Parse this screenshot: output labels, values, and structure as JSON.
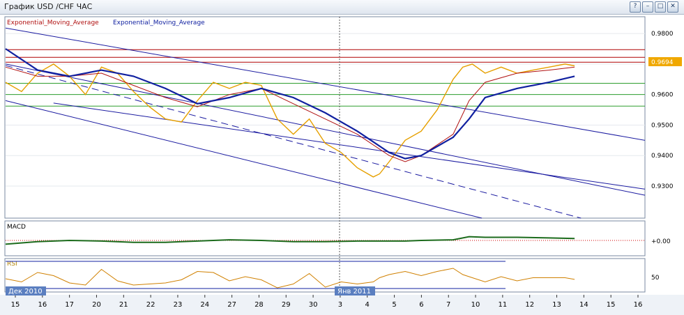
{
  "window": {
    "title": "График USD /CHF  ЧАС",
    "buttons": [
      "?",
      "–",
      "□",
      "✕"
    ]
  },
  "legend": [
    "Exponential_Moving_Average",
    "Exponential_Moving_Average"
  ],
  "colors": {
    "price": "#e6a000",
    "ema_fast": "#b01010",
    "ema_slow": "#1020a0",
    "trend_line": "#1a1aa0",
    "red_level": "#b00000",
    "green_level": "#2e9e2e",
    "macd_line": "#1c6b1c",
    "macd_hist": "#d00000",
    "rsi_line": "#d08000",
    "last_price_bg": "#f0a800"
  },
  "panels": {
    "macd_label": "MACD",
    "macd_tick": "+0.00",
    "rsi_label": "RSI",
    "rsi_tick": "50",
    "date_label_left": "Дек 2010",
    "date_label_mid": "Янв 2011"
  },
  "chart_data": {
    "type": "line",
    "title": "График USD /CHF  ЧАС",
    "y_ticks": [
      "0.9800",
      "0.9700",
      "0.9600",
      "0.9500",
      "0.9400",
      "0.9300"
    ],
    "ylim": [
      0.9195,
      0.9855
    ],
    "xlim": [
      0,
      20
    ],
    "x_tick_labels": [
      "15",
      "16",
      "17",
      "20",
      "21",
      "22",
      "23",
      "24",
      "27",
      "28",
      "29",
      "30",
      "3",
      "4",
      "5",
      "6",
      "7",
      "10",
      "11",
      "12",
      "13",
      "14",
      "15",
      "16"
    ],
    "last_price": "0.9694",
    "series": [
      {
        "role": "price",
        "x": [
          0,
          0.5,
          1.0,
          1.5,
          2.0,
          2.5,
          3.0,
          3.5,
          4.0,
          4.5,
          5.0,
          5.5,
          6.0,
          6.5,
          7.0,
          7.5,
          8.0,
          8.5,
          9.0,
          9.5,
          10.0,
          10.5,
          11.0,
          11.5,
          11.7,
          12.0,
          12.5,
          13.0,
          13.5,
          14.0,
          14.3,
          14.6,
          15.0,
          15.5,
          16.0,
          16.5,
          17.0,
          17.5,
          17.8
        ],
        "values": [
          0.964,
          0.961,
          0.967,
          0.97,
          0.966,
          0.96,
          0.969,
          0.967,
          0.961,
          0.956,
          0.952,
          0.951,
          0.958,
          0.964,
          0.962,
          0.964,
          0.963,
          0.952,
          0.947,
          0.952,
          0.944,
          0.941,
          0.936,
          0.933,
          0.934,
          0.938,
          0.945,
          0.948,
          0.955,
          0.965,
          0.969,
          0.97,
          0.967,
          0.969,
          0.967,
          0.968,
          0.969,
          0.97,
          0.9694
        ]
      },
      {
        "role": "ema_fast",
        "x": [
          0,
          1,
          2,
          3,
          4,
          5,
          6,
          7,
          8,
          9,
          10,
          11,
          12,
          12.5,
          13,
          14,
          14.5,
          15,
          16,
          17,
          17.8
        ],
        "values": [
          0.969,
          0.966,
          0.966,
          0.967,
          0.963,
          0.959,
          0.956,
          0.96,
          0.962,
          0.957,
          0.952,
          0.947,
          0.94,
          0.938,
          0.94,
          0.947,
          0.958,
          0.964,
          0.967,
          0.968,
          0.969
        ]
      },
      {
        "role": "ema_slow",
        "x": [
          0,
          1,
          2,
          3,
          4,
          5,
          6,
          7,
          8,
          9,
          10,
          11,
          12,
          12.5,
          13,
          14,
          14.5,
          15,
          16,
          17,
          17.8
        ],
        "values": [
          0.975,
          0.968,
          0.966,
          0.968,
          0.966,
          0.962,
          0.957,
          0.959,
          0.962,
          0.959,
          0.954,
          0.948,
          0.941,
          0.939,
          0.94,
          0.946,
          0.952,
          0.959,
          0.962,
          0.964,
          0.966
        ]
      }
    ],
    "horizontal_levels": [
      {
        "value": 0.9747,
        "color": "red"
      },
      {
        "value": 0.9722,
        "color": "red"
      },
      {
        "value": 0.9706,
        "color": "red"
      },
      {
        "value": 0.9637,
        "color": "green"
      },
      {
        "value": 0.96,
        "color": "green"
      },
      {
        "value": 0.9562,
        "color": "green"
      }
    ],
    "trend_lines": [
      {
        "x1": 0,
        "y1": 0.9818,
        "x2": 20,
        "y2": 0.945,
        "style": "solid"
      },
      {
        "x1": 0,
        "y1": 0.97,
        "x2": 20,
        "y2": 0.927,
        "style": "solid"
      },
      {
        "x1": 0,
        "y1": 0.958,
        "x2": 14.9,
        "y2": 0.9195,
        "style": "solid"
      },
      {
        "x1": 1.5,
        "y1": 0.9572,
        "x2": 20,
        "y2": 0.929,
        "style": "solid"
      },
      {
        "x1": 0,
        "y1": 0.9695,
        "x2": 18,
        "y2": 0.9195,
        "style": "dashed"
      }
    ],
    "grid": true
  }
}
